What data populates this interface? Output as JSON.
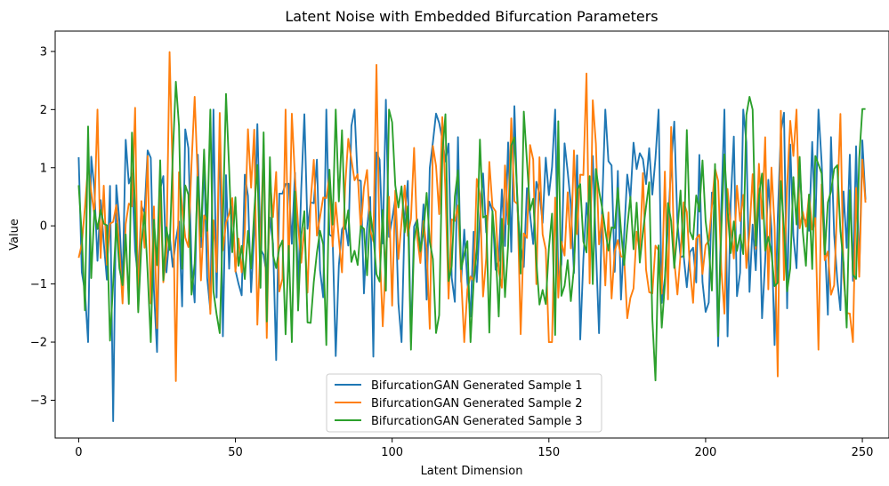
{
  "chart_data": {
    "type": "line",
    "title": "Latent Noise with Embedded Bifurcation Parameters",
    "xlabel": "Latent Dimension",
    "ylabel": "Value",
    "xlim": [
      -7.5,
      258.5
    ],
    "ylim": [
      -3.65,
      3.35
    ],
    "xticks": [
      0,
      50,
      100,
      150,
      200,
      250
    ],
    "yticks": [
      -3,
      -2,
      -1,
      0,
      1,
      2,
      3
    ],
    "ytick_labels": [
      "−3",
      "−2",
      "−1",
      "0",
      "1",
      "2",
      "3"
    ],
    "grid": false,
    "legend_position": "bottom-center",
    "num_points": 252,
    "series": [
      {
        "name": "BifurcationGAN Generated Sample 1",
        "color": "#1f77b4",
        "seed": 11,
        "anchors": {
          "0": 1.18,
          "2": -1.13,
          "4": 1.19,
          "11": -3.36,
          "25": -2.17,
          "34": 1.66,
          "46": -1.9,
          "57": 1.75,
          "63": -2.31,
          "82": -2.24,
          "87": 1.72,
          "94": -2.25,
          "98": 2.17,
          "115": 1.77,
          "139": 2.06,
          "155": 1.42,
          "187": -0.9,
          "204": -2.07,
          "222": -2.05,
          "239": -1.53,
          "248": 1.37,
          "250": 1.47,
          "251": 0.45
        }
      },
      {
        "name": "BifurcationGAN Generated Sample 2",
        "color": "#ff7f0e",
        "seed": 23,
        "anchors": {
          "0": -0.55,
          "18": 2.03,
          "25": -1.76,
          "29": 2.99,
          "31": -2.67,
          "37": 2.22,
          "60": -1.93,
          "68": 1.93,
          "95": 2.77,
          "116": 1.87,
          "162": 2.62,
          "164": 2.16,
          "223": -2.59,
          "236": -2.13,
          "245": -1.5,
          "246": -1.51,
          "250": 1.14,
          "251": 0.4
        }
      },
      {
        "name": "BifurcationGAN Generated Sample 3",
        "color": "#2ca02c",
        "seed": 37,
        "anchors": {
          "0": 0.7,
          "31": 2.48,
          "47": 2.27,
          "74": -1.67,
          "79": -2.05,
          "106": -2.13,
          "117": 1.92,
          "184": -2.66,
          "214": 2.22,
          "241": 0.98,
          "245": -1.75,
          "250": 2.01,
          "251": 2.01
        }
      }
    ]
  }
}
